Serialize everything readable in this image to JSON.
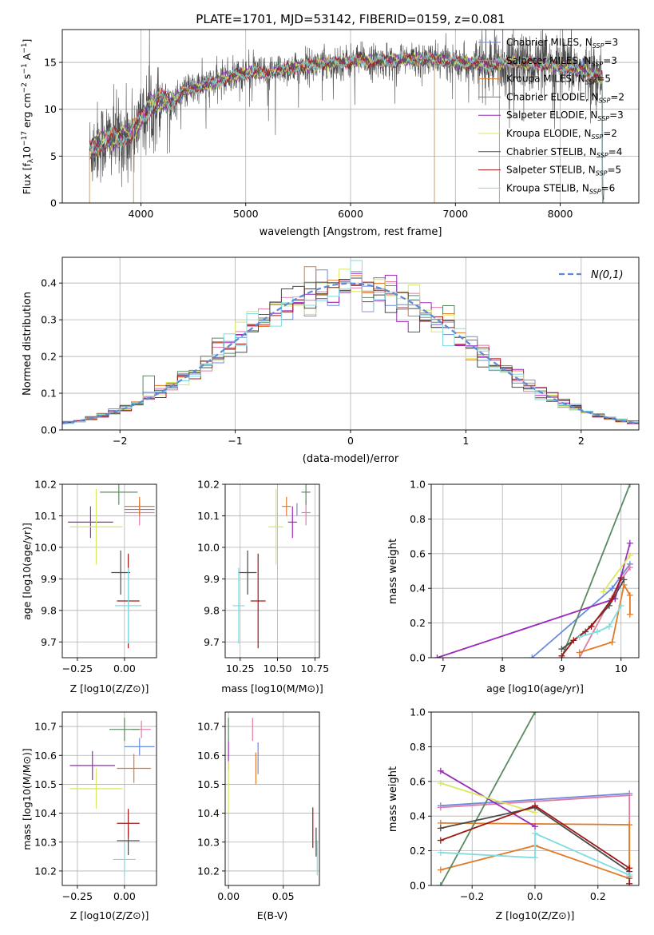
{
  "colors": {
    "Chabrier MILES": "#6b8cdc",
    "Salpeter MILES": "#e07ba6",
    "Kroupa MILES": "#e07b2a",
    "Chabrier ELODIE": "#5a8a62",
    "Salpeter ELODIE": "#9a2ab8",
    "Kroupa ELODIE": "#d8e860",
    "Chabrier STELIB": "#4a4a4a",
    "Salpeter STELIB": "#a01818",
    "Kroupa STELIB": "#80dce0",
    "normal": "#5a8ad8"
  },
  "chart_data": [
    {
      "id": "spectrum",
      "type": "line",
      "title": "PLATE=1701, MJD=53142, FIBERID=0159, z=0.081",
      "xlabel": "wavelength [Angstrom, rest frame]",
      "ylabel": "Flux [f",
      "ylabel_sub": "λ",
      "ylabel_mid": "10",
      "ylabel_sup1": "−17",
      "ylabel_rest": " erg cm",
      "ylabel_sup2": "−2",
      "ylabel_rest2": " s",
      "ylabel_sup3": "−1",
      "ylabel_rest3": " A",
      "ylabel_sup4": "−1",
      "ylabel_end": "]",
      "xlim": [
        3250,
        8750
      ],
      "ylim": [
        0,
        18.5
      ],
      "xticks": [
        4000,
        5000,
        6000,
        7000,
        8000
      ],
      "yticks": [
        0,
        5,
        10,
        15
      ],
      "legend_position": "right",
      "legend": [
        {
          "name": "Chabrier MILES",
          "n": "3"
        },
        {
          "name": "Salpeter MILES",
          "n": "3"
        },
        {
          "name": "Kroupa MILES",
          "n": "5"
        },
        {
          "name": "Chabrier ELODIE",
          "n": "2"
        },
        {
          "name": "Salpeter ELODIE",
          "n": "3"
        },
        {
          "name": "Kroupa ELODIE",
          "n": "2"
        },
        {
          "name": "Chabrier STELIB",
          "n": "4"
        },
        {
          "name": "Salpeter STELIB",
          "n": "5"
        },
        {
          "name": "Kroupa STELIB",
          "n": "6"
        }
      ],
      "legend_nlabel": ", N",
      "legend_nsub": "SSP",
      "continuum": [
        [
          3510,
          5.5
        ],
        [
          3600,
          6.5
        ],
        [
          3700,
          6.8
        ],
        [
          3800,
          7.0
        ],
        [
          3900,
          7.3
        ],
        [
          3950,
          8.0
        ],
        [
          4000,
          9.0
        ],
        [
          4100,
          10.5
        ],
        [
          4200,
          11.0
        ],
        [
          4300,
          10.8
        ],
        [
          4400,
          11.8
        ],
        [
          4500,
          12.2
        ],
        [
          4600,
          12.6
        ],
        [
          4700,
          12.8
        ],
        [
          4800,
          13.3
        ],
        [
          4900,
          13.6
        ],
        [
          5000,
          13.8
        ],
        [
          5100,
          14.0
        ],
        [
          5200,
          13.6
        ],
        [
          5300,
          14.2
        ],
        [
          5500,
          14.5
        ],
        [
          5700,
          14.8
        ],
        [
          5900,
          15.0
        ],
        [
          6100,
          15.2
        ],
        [
          6300,
          15.1
        ],
        [
          6500,
          15.3
        ],
        [
          6700,
          15.3
        ],
        [
          6900,
          15.2
        ],
        [
          7100,
          15.0
        ],
        [
          7300,
          14.7
        ],
        [
          7500,
          15.0
        ],
        [
          7800,
          14.8
        ],
        [
          8000,
          14.5
        ],
        [
          8200,
          14.2
        ],
        [
          8400,
          13.3
        ]
      ]
    },
    {
      "id": "residuals",
      "type": "step-histogram",
      "xlabel": "(data-model)/error",
      "ylabel": "Normed distribution",
      "xlim": [
        -2.5,
        2.5
      ],
      "ylim": [
        0,
        0.47
      ],
      "xticks": [
        -2,
        -1,
        0,
        1,
        2
      ],
      "yticks": [
        0.0,
        0.1,
        0.2,
        0.3,
        0.4
      ],
      "grid": true,
      "legend_position": "top-right",
      "normal_label": "N(0,1)",
      "bins": {
        "start": -2.5,
        "width": 0.1,
        "count": 50
      }
    },
    {
      "id": "age-vs-Z",
      "type": "scatter-errorbar",
      "xlabel": "Z [log10(Z/Z⊙)]",
      "ylabel": "age  [log10(age/yr)]",
      "xlim": [
        -0.33,
        0.17
      ],
      "ylim": [
        9.65,
        10.2
      ],
      "xticks": [
        -0.25,
        0.0
      ],
      "yticks": [
        9.7,
        9.8,
        9.9,
        10.0,
        10.1,
        10.2
      ],
      "points": [
        {
          "series": "Chabrier MILES",
          "x": 0.08,
          "xerr": 0.08,
          "y": 10.12,
          "yerr": 0.02
        },
        {
          "series": "Salpeter MILES",
          "x": 0.08,
          "xerr": 0.08,
          "y": 10.11,
          "yerr": 0.04
        },
        {
          "series": "Kroupa MILES",
          "x": 0.08,
          "xerr": 0.08,
          "y": 10.13,
          "yerr": 0.03
        },
        {
          "series": "Chabrier ELODIE",
          "x": -0.03,
          "xerr": 0.1,
          "y": 10.175,
          "yerr": 0.04
        },
        {
          "series": "Salpeter ELODIE",
          "x": -0.18,
          "xerr": 0.12,
          "y": 10.08,
          "yerr": 0.05
        },
        {
          "series": "Kroupa ELODIE",
          "x": -0.15,
          "xerr": 0.14,
          "y": 10.065,
          "yerr": 0.12
        },
        {
          "series": "Chabrier STELIB",
          "x": -0.02,
          "xerr": 0.05,
          "y": 9.92,
          "yerr": 0.07
        },
        {
          "series": "Salpeter STELIB",
          "x": 0.02,
          "xerr": 0.06,
          "y": 9.83,
          "yerr": 0.15
        },
        {
          "series": "Kroupa STELIB",
          "x": 0.02,
          "xerr": 0.07,
          "y": 9.815,
          "yerr": 0.12
        }
      ]
    },
    {
      "id": "age-vs-mass",
      "type": "scatter-errorbar",
      "xlabel": "mass [log10(M/M⊙)]",
      "ylabel": "",
      "xlim": [
        10.15,
        10.78
      ],
      "ylim": [
        9.65,
        10.2
      ],
      "xticks": [
        10.25,
        10.5,
        10.75
      ],
      "yticks": [
        9.7,
        9.8,
        9.9,
        10.0,
        10.1,
        10.2
      ],
      "points": [
        {
          "series": "Chabrier MILES",
          "x": 10.63,
          "xerr": 0.0,
          "y": 10.12,
          "yerr": 0.02
        },
        {
          "series": "Salpeter MILES",
          "x": 10.69,
          "xerr": 0.03,
          "y": 10.11,
          "yerr": 0.04
        },
        {
          "series": "Kroupa MILES",
          "x": 10.56,
          "xerr": 0.03,
          "y": 10.13,
          "yerr": 0.03
        },
        {
          "series": "Chabrier ELODIE",
          "x": 10.69,
          "xerr": 0.03,
          "y": 10.175,
          "yerr": 0.04
        },
        {
          "series": "Salpeter ELODIE",
          "x": 10.6,
          "xerr": 0.03,
          "y": 10.08,
          "yerr": 0.05
        },
        {
          "series": "Kroupa ELODIE",
          "x": 10.49,
          "xerr": 0.05,
          "y": 10.065,
          "yerr": 0.12
        },
        {
          "series": "Chabrier STELIB",
          "x": 10.3,
          "xerr": 0.06,
          "y": 9.92,
          "yerr": 0.07
        },
        {
          "series": "Salpeter STELIB",
          "x": 10.37,
          "xerr": 0.05,
          "y": 9.83,
          "yerr": 0.15
        },
        {
          "series": "Kroupa STELIB",
          "x": 10.24,
          "xerr": 0.04,
          "y": 9.815,
          "yerr": 0.12
        }
      ]
    },
    {
      "id": "massweight-vs-age",
      "type": "line",
      "xlabel": "age  [log10(age/yr)]",
      "ylabel": "mass weight",
      "xlim": [
        6.8,
        10.3
      ],
      "ylim": [
        0,
        1
      ],
      "xticks": [
        7,
        8,
        9,
        10
      ],
      "yticks": [
        0.0,
        0.2,
        0.4,
        0.6,
        0.8,
        1.0
      ],
      "grid": true,
      "series": [
        {
          "name": "Chabrier MILES",
          "points": [
            [
              8.5,
              0
            ],
            [
              9.85,
              0.4
            ],
            [
              10.15,
              0.54
            ]
          ]
        },
        {
          "name": "Salpeter MILES",
          "points": [
            [
              9.3,
              0
            ],
            [
              10.0,
              0.45
            ],
            [
              10.15,
              0.52
            ]
          ]
        },
        {
          "name": "Kroupa MILES",
          "points": [
            [
              9.3,
              0.03
            ],
            [
              9.85,
              0.09
            ],
            [
              10.05,
              0.42
            ],
            [
              10.15,
              0.36
            ],
            [
              10.15,
              0.25
            ]
          ]
        },
        {
          "name": "Chabrier ELODIE",
          "points": [
            [
              9.0,
              0
            ],
            [
              10.15,
              1.0
            ]
          ]
        },
        {
          "name": "Salpeter ELODIE",
          "points": [
            [
              6.9,
              0
            ],
            [
              9.9,
              0.34
            ],
            [
              10.15,
              0.66
            ]
          ]
        },
        {
          "name": "Kroupa ELODIE",
          "points": [
            [
              9.7,
              0.38
            ],
            [
              10.15,
              0.59
            ]
          ]
        },
        {
          "name": "Chabrier STELIB",
          "points": [
            [
              9.0,
              0.05
            ],
            [
              9.4,
              0.15
            ],
            [
              9.8,
              0.3
            ],
            [
              10.05,
              0.45
            ]
          ]
        },
        {
          "name": "Salpeter STELIB",
          "points": [
            [
              9.0,
              0.01
            ],
            [
              9.2,
              0.1
            ],
            [
              9.5,
              0.18
            ],
            [
              9.85,
              0.34
            ],
            [
              10.0,
              0.46
            ]
          ]
        },
        {
          "name": "Kroupa STELIB",
          "points": [
            [
              9.3,
              0.12
            ],
            [
              9.6,
              0.15
            ],
            [
              9.8,
              0.18
            ],
            [
              10.0,
              0.3
            ]
          ]
        }
      ]
    },
    {
      "id": "mass-vs-Z",
      "type": "scatter-errorbar",
      "xlabel": "Z [log10(Z/Z⊙)]",
      "ylabel": "mass [log10(M/M⊙)]",
      "xlim": [
        -0.33,
        0.17
      ],
      "ylim": [
        10.15,
        10.75
      ],
      "xticks": [
        -0.25,
        0.0
      ],
      "yticks": [
        10.2,
        10.3,
        10.4,
        10.5,
        10.6,
        10.7
      ],
      "points": [
        {
          "series": "Chabrier MILES",
          "x": 0.08,
          "xerr": 0.08,
          "y": 10.63,
          "yerr": 0.03
        },
        {
          "series": "Salpeter MILES",
          "x": 0.09,
          "xerr": 0.05,
          "y": 10.69,
          "yerr": 0.03
        },
        {
          "series": "Kroupa MILES",
          "x": 0.05,
          "xerr": 0.09,
          "y": 10.555,
          "yerr": 0.05
        },
        {
          "series": "Chabrier ELODIE",
          "x": 0.0,
          "xerr": 0.08,
          "y": 10.69,
          "yerr": 0.04
        },
        {
          "series": "Salpeter ELODIE",
          "x": -0.17,
          "xerr": 0.12,
          "y": 10.565,
          "yerr": 0.05
        },
        {
          "series": "Kroupa ELODIE",
          "x": -0.15,
          "xerr": 0.14,
          "y": 10.485,
          "yerr": 0.07
        },
        {
          "series": "Chabrier STELIB",
          "x": 0.02,
          "xerr": 0.06,
          "y": 10.305,
          "yerr": 0.05
        },
        {
          "series": "Salpeter STELIB",
          "x": 0.02,
          "xerr": 0.06,
          "y": 10.365,
          "yerr": 0.05
        },
        {
          "series": "Kroupa STELIB",
          "x": 0.0,
          "xerr": 0.06,
          "y": 10.24,
          "yerr": 0.06
        }
      ]
    },
    {
      "id": "mass-vs-EBV",
      "type": "scatter-errorbar",
      "xlabel": "E(B-V)",
      "ylabel": "",
      "xlim": [
        -0.003,
        0.083
      ],
      "ylim": [
        10.15,
        10.75
      ],
      "xticks": [
        0.0,
        0.05
      ],
      "yticks": [
        10.2,
        10.3,
        10.4,
        10.5,
        10.6,
        10.7
      ],
      "points": [
        {
          "series": "Chabrier MILES",
          "x": 0.027,
          "xerr": 0,
          "y": 10.59,
          "yerr": 0.055
        },
        {
          "series": "Salpeter MILES",
          "x": 0.022,
          "xerr": 0,
          "y": 10.69,
          "yerr": 0.04
        },
        {
          "series": "Kroupa MILES",
          "x": 0.025,
          "xerr": 0,
          "y": 10.555,
          "yerr": 0.055
        },
        {
          "series": "Chabrier ELODIE",
          "x": 0.0,
          "xerr": 0,
          "y": 10.69,
          "yerr": 0.04
        },
        {
          "series": "Salpeter ELODIE",
          "x": 0.0,
          "xerr": 0,
          "y": 10.6,
          "yerr": 0.05
        },
        {
          "series": "Kroupa ELODIE",
          "x": 0.0,
          "xerr": 0,
          "y": 10.49,
          "yerr": 0.09
        },
        {
          "series": "Chabrier STELIB",
          "x": 0.08,
          "xerr": 0,
          "y": 10.3,
          "yerr": 0.05
        },
        {
          "series": "Salpeter STELIB",
          "x": 0.077,
          "xerr": 0,
          "y": 10.35,
          "yerr": 0.07
        },
        {
          "series": "Kroupa STELIB",
          "x": 0.081,
          "xerr": 0,
          "y": 10.245,
          "yerr": 0.06
        }
      ]
    },
    {
      "id": "massweight-vs-Z",
      "type": "line",
      "xlabel": "Z [log10(Z/Z⊙)]",
      "ylabel": "mass weight",
      "xlim": [
        -0.33,
        0.33
      ],
      "ylim": [
        0,
        1
      ],
      "xticks": [
        -0.2,
        0.0,
        0.2
      ],
      "yticks": [
        0.0,
        0.2,
        0.4,
        0.6,
        0.8,
        1.0
      ],
      "grid": true,
      "series": [
        {
          "name": "Chabrier MILES",
          "points": [
            [
              -0.3,
              0.46
            ],
            [
              0.3,
              0.53
            ]
          ]
        },
        {
          "name": "Salpeter MILES",
          "points": [
            [
              -0.3,
              0.45
            ],
            [
              0.3,
              0.52
            ],
            [
              0.3,
              0.05
            ]
          ]
        },
        {
          "name": "Kroupa MILES",
          "points": [
            [
              -0.3,
              0.09
            ],
            [
              0.0,
              0.23
            ],
            [
              0.3,
              0.04
            ],
            [
              0.3,
              0.35
            ],
            [
              -0.3,
              0.36
            ]
          ]
        },
        {
          "name": "Chabrier ELODIE",
          "points": [
            [
              -0.3,
              0.0
            ],
            [
              0.0,
              1.0
            ]
          ]
        },
        {
          "name": "Salpeter ELODIE",
          "points": [
            [
              -0.3,
              0.66
            ],
            [
              0.0,
              0.34
            ]
          ]
        },
        {
          "name": "Kroupa ELODIE",
          "points": [
            [
              -0.3,
              0.59
            ],
            [
              0.0,
              0.42
            ]
          ]
        },
        {
          "name": "Chabrier STELIB",
          "points": [
            [
              -0.3,
              0.33
            ],
            [
              0.0,
              0.45
            ],
            [
              0.3,
              0.08
            ]
          ]
        },
        {
          "name": "Salpeter STELIB",
          "points": [
            [
              -0.3,
              0.26
            ],
            [
              0.0,
              0.46
            ],
            [
              0.3,
              0.1
            ],
            [
              0.3,
              0.01
            ]
          ]
        },
        {
          "name": "Kroupa STELIB",
          "points": [
            [
              -0.3,
              0.19
            ],
            [
              0.0,
              0.16
            ],
            [
              0.0,
              0.3
            ],
            [
              0.3,
              0.06
            ]
          ]
        }
      ]
    }
  ]
}
